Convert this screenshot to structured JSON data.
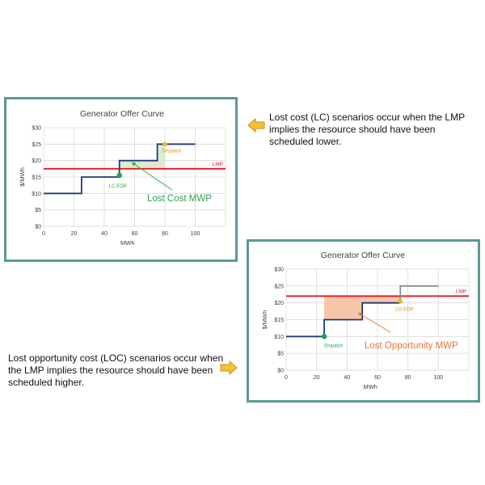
{
  "colors": {
    "border": "#5a9a96",
    "curve": "#1f3a7a",
    "curve_extended": "#8c8c9c",
    "lmp": "#e8161e",
    "eop_marker": "#1aa84a",
    "dispatch_marker": "#f6b21a",
    "lc_fill": "#dcebd2",
    "loc_fill": "#f7c5a8",
    "lc_annotation": "#2ea24a",
    "loc_annotation": "#e8753a",
    "arrow_fill": "#f6c234",
    "arrow_stroke": "#c8901a",
    "grid": "#d9d9d9",
    "axis_text": "#404040"
  },
  "captions": {
    "lc": "Lost cost (LC) scenarios occur when the LMP implies the resource should have been scheduled lower.",
    "loc": "Lost opportunity cost (LOC) scenarios occur when the LMP implies the resource should have been scheduled higher."
  },
  "icons": {
    "lc_arrow": "left-arrow-icon",
    "loc_arrow": "right-arrow-icon"
  },
  "chart_data": [
    {
      "type": "line",
      "title": "Generator Offer Curve",
      "xlabel": "MWh",
      "ylabel": "$/MWh",
      "xlim": [
        0,
        120
      ],
      "ylim": [
        0,
        30
      ],
      "x_ticks": [
        "0",
        "20",
        "40",
        "60",
        "80",
        "100"
      ],
      "y_ticks": [
        "$0",
        "$5",
        "$10",
        "$15",
        "$20",
        "$25",
        "$30"
      ],
      "grid": true,
      "series": [
        {
          "points": [
            [
              0,
              10
            ],
            [
              25,
              10
            ],
            [
              25,
              15
            ],
            [
              50,
              15
            ],
            [
              50,
              20
            ],
            [
              75,
              20
            ],
            [
              75,
              25
            ],
            [
              100,
              25
            ]
          ]
        },
        {
          "name": "LMP",
          "y": 17.5
        }
      ],
      "markers": [
        {
          "label": "LC EOP",
          "x": 50,
          "y": 15.5
        },
        {
          "label": "Dispatch",
          "x": 80,
          "y": 25
        }
      ],
      "shaded_region": {
        "x": [
          50,
          80
        ],
        "y_bottom": 17.5,
        "steps": [
          [
            50,
            20
          ],
          [
            75,
            20
          ],
          [
            75,
            25
          ],
          [
            80,
            25
          ]
        ]
      },
      "annotation": "Lost Cost MWP"
    },
    {
      "type": "line",
      "title": "Generator Offer Curve",
      "xlabel": "MWh",
      "ylabel": "$/MWh",
      "xlim": [
        0,
        120
      ],
      "ylim": [
        0,
        30
      ],
      "x_ticks": [
        "0",
        "20",
        "40",
        "60",
        "80",
        "100"
      ],
      "y_ticks": [
        "$0",
        "$5",
        "$10",
        "$15",
        "$20",
        "$25",
        "$30"
      ],
      "grid": true,
      "series": [
        {
          "points": [
            [
              0,
              10
            ],
            [
              25,
              10
            ],
            [
              25,
              15
            ],
            [
              50,
              15
            ],
            [
              50,
              20
            ],
            [
              75,
              20
            ]
          ]
        },
        {
          "points": [
            [
              75,
              20
            ],
            [
              75,
              25
            ],
            [
              100,
              25
            ]
          ]
        },
        {
          "name": "LMP",
          "y": 22
        }
      ],
      "markers": [
        {
          "label": "Dispatch",
          "x": 25,
          "y": 10
        },
        {
          "label": "LO EOP",
          "x": 75,
          "y": 20.5
        }
      ],
      "shaded_region": {
        "x": [
          25,
          75
        ],
        "y_top": 22,
        "steps": [
          [
            25,
            15
          ],
          [
            50,
            15
          ],
          [
            50,
            20
          ],
          [
            75,
            20
          ]
        ]
      },
      "annotation": "Lost Opportunity MWP"
    }
  ]
}
